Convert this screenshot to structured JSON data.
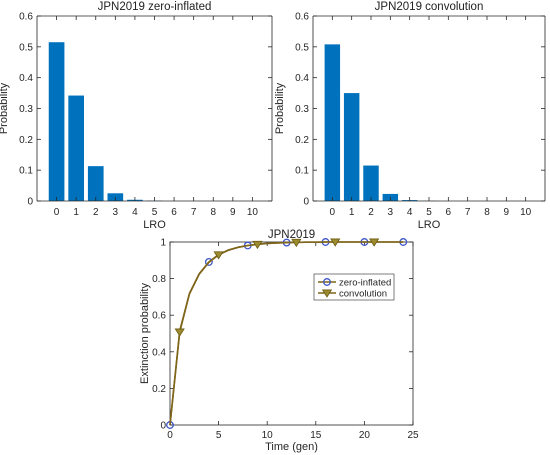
{
  "chart_data": [
    {
      "type": "bar",
      "title": "JPN2019 zero-inflated",
      "xlabel": "LRO",
      "ylabel": "Probability",
      "categories": [
        "0",
        "1",
        "2",
        "3",
        "4",
        "5",
        "6",
        "7",
        "8",
        "9",
        "10"
      ],
      "values": [
        0.515,
        0.342,
        0.113,
        0.025,
        0.004,
        0.001,
        0,
        0,
        0,
        0,
        0
      ],
      "ylim": [
        0,
        0.6
      ],
      "yticks": [
        "0",
        "0.1",
        "0.2",
        "0.3",
        "0.4",
        "0.5",
        "0.6"
      ],
      "color": "#0072BD"
    },
    {
      "type": "bar",
      "title": "JPN2019 convolution",
      "xlabel": "LRO",
      "ylabel": "Probability",
      "categories": [
        "0",
        "1",
        "2",
        "3",
        "4",
        "5",
        "6",
        "7",
        "8",
        "9",
        "10"
      ],
      "values": [
        0.508,
        0.35,
        0.115,
        0.023,
        0.003,
        0.0005,
        0,
        0,
        0,
        0,
        0
      ],
      "ylim": [
        0,
        0.6
      ],
      "yticks": [
        "0",
        "0.1",
        "0.2",
        "0.3",
        "0.4",
        "0.5",
        "0.6"
      ],
      "color": "#0072BD"
    },
    {
      "type": "line",
      "title": "JPN2019",
      "xlabel": "Time (gen)",
      "ylabel": "Extinction probability",
      "xlim": [
        0,
        25
      ],
      "ylim": [
        0,
        1
      ],
      "xticks": [
        "0",
        "5",
        "10",
        "15",
        "20",
        "25"
      ],
      "yticks": [
        "0",
        "0.2",
        "0.4",
        "0.6",
        "0.8",
        "1"
      ],
      "legend_position": "right",
      "series": [
        {
          "name": "zero-inflated",
          "x": [
            0,
            1,
            2,
            3,
            4,
            5,
            6,
            7,
            8,
            9,
            10,
            11,
            12,
            13,
            14,
            15,
            16,
            17,
            18,
            19,
            20,
            21,
            22,
            23,
            24
          ],
          "y": [
            0,
            0.515,
            0.719,
            0.826,
            0.891,
            0.931,
            0.956,
            0.971,
            0.981,
            0.988,
            0.992,
            0.995,
            0.997,
            0.998,
            0.999,
            0.999,
            1,
            1,
            1,
            1,
            1,
            1,
            1,
            1,
            1
          ],
          "marker_indices": [
            0,
            4,
            8,
            12,
            16,
            20,
            24
          ],
          "marker": "circle",
          "line_color": "#7E6519",
          "marker_color": "#3D55C8"
        },
        {
          "name": "convolution",
          "x": [
            0,
            1,
            2,
            3,
            4,
            5,
            6,
            7,
            8,
            9,
            10,
            11,
            12,
            13,
            14,
            15,
            16,
            17,
            18,
            19,
            20,
            21,
            22,
            23,
            24
          ],
          "y": [
            0,
            0.508,
            0.716,
            0.824,
            0.889,
            0.93,
            0.955,
            0.971,
            0.981,
            0.987,
            0.992,
            0.995,
            0.997,
            0.998,
            0.999,
            0.999,
            1,
            1,
            1,
            1,
            1,
            1,
            1,
            1,
            1
          ],
          "marker_indices": [
            1,
            5,
            9,
            13,
            17,
            21
          ],
          "marker": "triangle-down",
          "line_color": "#7E6519",
          "marker_color": "#9C8A2E"
        }
      ]
    }
  ]
}
